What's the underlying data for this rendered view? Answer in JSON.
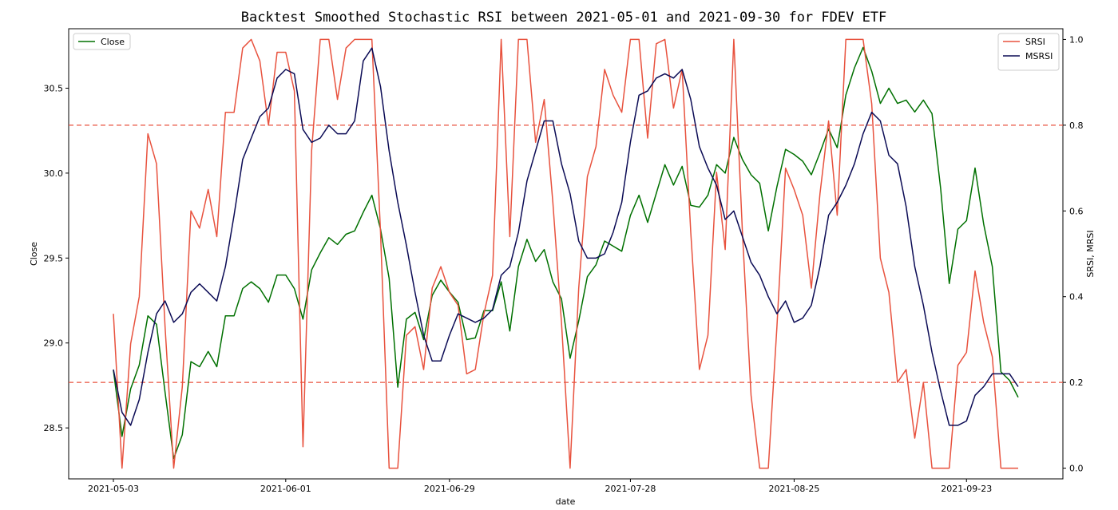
{
  "chart_data": {
    "type": "line",
    "title": "Backtest Smoothed Stochastic RSI between 2021-05-01 and 2021-09-30 for FDEV ETF",
    "xlabel": "date",
    "ylabel_left": "Close",
    "ylabel_right": "SRSI, MRSI",
    "x_tick_labels": [
      "2021-05-03",
      "2021-06-01",
      "2021-06-29",
      "2021-07-28",
      "2021-08-25",
      "2021-09-23"
    ],
    "left_ylim": [
      28.2,
      30.85
    ],
    "left_y_ticks": [
      "28.5",
      "29.0",
      "29.5",
      "30.0",
      "30.5"
    ],
    "right_ylim": [
      -0.025,
      1.025
    ],
    "right_y_ticks": [
      "0.0",
      "0.2",
      "0.4",
      "0.6",
      "0.8",
      "1.0"
    ],
    "grid": false,
    "thresholds": [
      {
        "value": 0.8,
        "axis": "right",
        "style": "dashed",
        "color": "#e8523e"
      },
      {
        "value": 0.2,
        "axis": "right",
        "style": "dashed",
        "color": "#e8523e"
      }
    ],
    "legend_left": {
      "placement": "top-left",
      "entries": [
        "Close"
      ]
    },
    "legend_right": {
      "placement": "top-right",
      "entries": [
        "SRSI",
        "MSRSI"
      ]
    },
    "series": [
      {
        "name": "Close",
        "axis": "left",
        "color": "#007000",
        "values": [
          28.84,
          28.45,
          28.73,
          28.87,
          29.16,
          29.11,
          28.71,
          28.32,
          28.46,
          28.89,
          28.86,
          28.95,
          28.86,
          29.16,
          29.16,
          29.32,
          29.36,
          29.32,
          29.24,
          29.4,
          29.4,
          29.32,
          29.14,
          29.43,
          29.53,
          29.62,
          29.58,
          29.64,
          29.66,
          29.77,
          29.87,
          29.67,
          29.38,
          28.74,
          29.14,
          29.18,
          29.02,
          29.28,
          29.37,
          29.3,
          29.24,
          29.02,
          29.03,
          29.19,
          29.19,
          29.36,
          29.07,
          29.45,
          29.61,
          29.48,
          29.55,
          29.36,
          29.26,
          28.91,
          29.13,
          29.39,
          29.46,
          29.6,
          29.57,
          29.54,
          29.75,
          29.87,
          29.71,
          29.88,
          30.05,
          29.93,
          30.04,
          29.81,
          29.8,
          29.87,
          30.05,
          30.0,
          30.21,
          30.08,
          29.99,
          29.94,
          29.66,
          29.92,
          30.14,
          30.11,
          30.07,
          29.99,
          30.12,
          30.26,
          30.15,
          30.46,
          30.62,
          30.74,
          30.6,
          30.41,
          30.5,
          30.41,
          30.43,
          30.36,
          30.43,
          30.35,
          29.91,
          29.35,
          29.67,
          29.72,
          30.03,
          29.7,
          29.45,
          28.83,
          28.78,
          28.68
        ]
      },
      {
        "name": "SRSI",
        "axis": "right",
        "color": "#e8523e",
        "values": [
          0.36,
          0.0,
          0.29,
          0.4,
          0.78,
          0.71,
          0.33,
          0.0,
          0.19,
          0.6,
          0.56,
          0.65,
          0.54,
          0.83,
          0.83,
          0.98,
          1.0,
          0.95,
          0.8,
          0.97,
          0.97,
          0.88,
          0.05,
          0.74,
          1.0,
          1.0,
          0.86,
          0.98,
          1.0,
          1.0,
          1.0,
          0.55,
          0.0,
          0.0,
          0.31,
          0.33,
          0.23,
          0.42,
          0.47,
          0.41,
          0.38,
          0.22,
          0.23,
          0.36,
          0.45,
          1.0,
          0.54,
          1.0,
          1.0,
          0.76,
          0.86,
          0.62,
          0.34,
          0.0,
          0.42,
          0.68,
          0.75,
          0.93,
          0.87,
          0.83,
          1.0,
          1.0,
          0.77,
          0.99,
          1.0,
          0.84,
          0.93,
          0.55,
          0.23,
          0.31,
          0.69,
          0.51,
          1.0,
          0.55,
          0.17,
          0.0,
          0.0,
          0.33,
          0.7,
          0.65,
          0.59,
          0.42,
          0.64,
          0.81,
          0.59,
          1.0,
          1.0,
          1.0,
          0.85,
          0.49,
          0.41,
          0.2,
          0.23,
          0.07,
          0.2,
          0.0,
          0.0,
          0.0,
          0.24,
          0.27,
          0.46,
          0.34,
          0.26,
          0.0,
          0.0,
          0.0
        ]
      },
      {
        "name": "MSRSI",
        "axis": "right",
        "color": "#0b0b55",
        "values": [
          0.23,
          0.13,
          0.1,
          0.16,
          0.27,
          0.36,
          0.39,
          0.34,
          0.36,
          0.41,
          0.43,
          0.41,
          0.39,
          0.47,
          0.59,
          0.72,
          0.77,
          0.82,
          0.84,
          0.91,
          0.93,
          0.92,
          0.79,
          0.76,
          0.77,
          0.8,
          0.78,
          0.78,
          0.81,
          0.95,
          0.98,
          0.89,
          0.74,
          0.62,
          0.52,
          0.41,
          0.31,
          0.25,
          0.25,
          0.31,
          0.36,
          0.35,
          0.34,
          0.35,
          0.37,
          0.45,
          0.47,
          0.55,
          0.67,
          0.74,
          0.81,
          0.81,
          0.71,
          0.64,
          0.53,
          0.49,
          0.49,
          0.5,
          0.55,
          0.62,
          0.76,
          0.87,
          0.88,
          0.91,
          0.92,
          0.91,
          0.93,
          0.86,
          0.75,
          0.7,
          0.66,
          0.58,
          0.6,
          0.54,
          0.48,
          0.45,
          0.4,
          0.36,
          0.39,
          0.34,
          0.35,
          0.38,
          0.47,
          0.59,
          0.62,
          0.66,
          0.71,
          0.78,
          0.83,
          0.81,
          0.73,
          0.71,
          0.61,
          0.47,
          0.38,
          0.27,
          0.18,
          0.1,
          0.1,
          0.11,
          0.17,
          0.19,
          0.22,
          0.22,
          0.22,
          0.19
        ]
      }
    ],
    "x_tick_indices": [
      0,
      20,
      39,
      60,
      79,
      99
    ]
  }
}
